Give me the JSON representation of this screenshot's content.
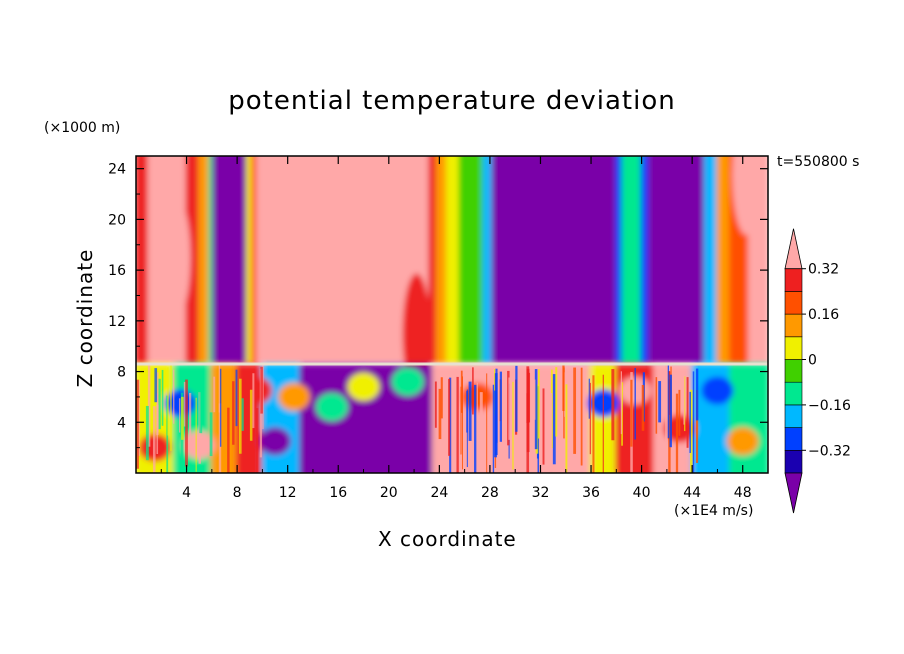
{
  "chart_data": {
    "type": "heatmap",
    "title": "potential temperature deviation",
    "xlabel": "X coordinate",
    "ylabel": "Z coordinate",
    "x_unit": "(×1E4 m/s)",
    "y_unit": "(×1000 m)",
    "time_label": "t=550800 s",
    "xlim": [
      0,
      50
    ],
    "ylim": [
      0,
      25
    ],
    "x_ticks": [
      4,
      8,
      12,
      16,
      20,
      24,
      28,
      32,
      36,
      40,
      44,
      48
    ],
    "y_ticks": [
      4,
      8,
      12,
      16,
      20,
      24
    ],
    "colorbar": {
      "levels": [
        -0.4,
        -0.32,
        -0.24,
        -0.16,
        -0.08,
        0,
        0.08,
        0.16,
        0.24,
        0.32,
        0.4
      ],
      "labels": [
        "0.32",
        "0.16",
        "0",
        "−0.16",
        "−0.32"
      ],
      "label_values": [
        0.32,
        0.16,
        0,
        -0.16,
        -0.32
      ],
      "colors": [
        "#7a00a8",
        "#1a00b0",
        "#0040ff",
        "#00b8ff",
        "#00e890",
        "#40d000",
        "#f0f000",
        "#ff9900",
        "#ff5000",
        "#ee2020",
        "#ffa8a8"
      ]
    },
    "upper_layer_columns": [
      {
        "x0": 0,
        "x1": 1,
        "v": 0.3
      },
      {
        "x0": 1,
        "x1": 2.5,
        "v": 0.4
      },
      {
        "x0": 2.5,
        "x1": 4,
        "v": 0.36
      },
      {
        "x0": 4,
        "x1": 5,
        "v": 0.25
      },
      {
        "x0": 5,
        "x1": 5.8,
        "v": 0.1
      },
      {
        "x0": 5.8,
        "x1": 6.1,
        "v": -0.12
      },
      {
        "x0": 6.1,
        "x1": 8.8,
        "v": -0.45
      },
      {
        "x0": 8.8,
        "x1": 9.2,
        "v": 0.0
      },
      {
        "x0": 9.2,
        "x1": 9.6,
        "v": 0.2
      },
      {
        "x0": 9.6,
        "x1": 23.2,
        "v": 0.45
      },
      {
        "x0": 23.2,
        "x1": 23.8,
        "v": 0.3
      },
      {
        "x0": 23.8,
        "x1": 24.6,
        "v": 0.15
      },
      {
        "x0": 24.6,
        "x1": 25.6,
        "v": 0.05
      },
      {
        "x0": 25.6,
        "x1": 27.5,
        "v": -0.05
      },
      {
        "x0": 27.5,
        "x1": 28.2,
        "v": -0.2
      },
      {
        "x0": 28.2,
        "x1": 38.0,
        "v": -0.45
      },
      {
        "x0": 38.0,
        "x1": 38.5,
        "v": -0.3
      },
      {
        "x0": 38.5,
        "x1": 40.0,
        "v": -0.12
      },
      {
        "x0": 40.0,
        "x1": 40.6,
        "v": -0.3
      },
      {
        "x0": 40.6,
        "x1": 45.0,
        "v": -0.45
      },
      {
        "x0": 45.0,
        "x1": 46.0,
        "v": -0.2
      },
      {
        "x0": 46.0,
        "x1": 47.0,
        "v": 0.1
      },
      {
        "x0": 47.0,
        "x1": 48.5,
        "v": 0.22
      },
      {
        "x0": 48.5,
        "x1": 50.0,
        "v": 0.34
      }
    ],
    "upper_layer_blobs": [
      {
        "x": 3.2,
        "z": 17,
        "v": 0.45
      },
      {
        "x": 22.2,
        "z": 11,
        "v": 0.3
      },
      {
        "x": 48.3,
        "z": 23.5,
        "v": 0.42
      }
    ],
    "lower_layer_columns": [
      {
        "x0": 0,
        "x1": 3,
        "v": 0.0
      },
      {
        "x0": 3,
        "x1": 6,
        "v": -0.16
      },
      {
        "x0": 6,
        "x1": 8,
        "v": 0.08
      },
      {
        "x0": 8,
        "x1": 10,
        "v": 0.3
      },
      {
        "x0": 10,
        "x1": 13,
        "v": -0.2
      },
      {
        "x0": 13,
        "x1": 18,
        "v": -0.45
      },
      {
        "x0": 18,
        "x1": 23.5,
        "v": -0.45
      },
      {
        "x0": 23.5,
        "x1": 28,
        "v": 0.35
      },
      {
        "x0": 28,
        "x1": 31,
        "v": 0.42
      },
      {
        "x0": 31,
        "x1": 36,
        "v": 0.4
      },
      {
        "x0": 36,
        "x1": 38,
        "v": 0.05
      },
      {
        "x0": 38,
        "x1": 41,
        "v": 0.3
      },
      {
        "x0": 41,
        "x1": 44,
        "v": 0.42
      },
      {
        "x0": 44,
        "x1": 47,
        "v": -0.2
      },
      {
        "x0": 47,
        "x1": 50,
        "v": -0.1
      }
    ],
    "lower_layer_blobs": [
      {
        "x": 1.5,
        "z": 2,
        "v": 0.3
      },
      {
        "x": 3.5,
        "z": 5.5,
        "v": -0.3
      },
      {
        "x": 5.0,
        "z": 2.2,
        "v": 0.42
      },
      {
        "x": 9.5,
        "z": 6.5,
        "v": 0.3
      },
      {
        "x": 11.0,
        "z": 2.5,
        "v": -0.45
      },
      {
        "x": 12.5,
        "z": 6,
        "v": 0.1
      },
      {
        "x": 15.5,
        "z": 5.2,
        "v": -0.16
      },
      {
        "x": 18.0,
        "z": 6.8,
        "v": 0.0
      },
      {
        "x": 20.5,
        "z": 4,
        "v": -0.45
      },
      {
        "x": 21.5,
        "z": 7.2,
        "v": -0.16
      },
      {
        "x": 25.0,
        "z": 2.5,
        "v": 0.42
      },
      {
        "x": 27.0,
        "z": 6,
        "v": 0.2
      },
      {
        "x": 33.5,
        "z": 3,
        "v": 0.45
      },
      {
        "x": 37.0,
        "z": 5.5,
        "v": -0.3
      },
      {
        "x": 39.5,
        "z": 6.5,
        "v": 0.42
      },
      {
        "x": 43.0,
        "z": 3.5,
        "v": 0.3
      },
      {
        "x": 46.0,
        "z": 6.5,
        "v": -0.3
      },
      {
        "x": 48.0,
        "z": 2.5,
        "v": 0.15
      }
    ],
    "interface_height": 8.6
  }
}
